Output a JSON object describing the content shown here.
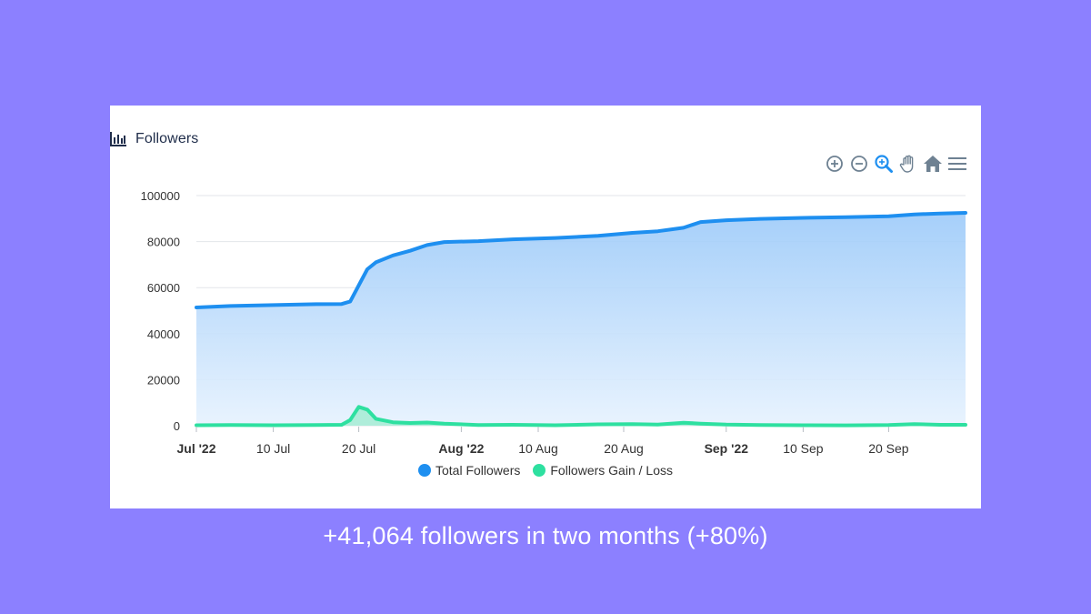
{
  "card": {
    "title": "Followers",
    "title_icon": "bar-chart-icon",
    "toolbar": [
      {
        "name": "zoom-in-icon",
        "label": "Zoom In"
      },
      {
        "name": "zoom-out-icon",
        "label": "Zoom Out"
      },
      {
        "name": "selection-zoom-icon",
        "label": "Selection Zoom"
      },
      {
        "name": "pan-icon",
        "label": "Panning"
      },
      {
        "name": "reset-zoom-icon",
        "label": "Reset Zoom"
      },
      {
        "name": "menu-icon",
        "label": "Menu"
      }
    ]
  },
  "caption": "+41,064 followers in two months (+80%)",
  "colors": {
    "background": "#8c80ff",
    "total_line": "#1e8ff0",
    "total_fill_top": "#9ccaf9",
    "total_fill_bottom": "#e6f2fe",
    "gain_line": "#2ee0a0",
    "gain_fill": "#a8ecd6",
    "toolbar_icon": "#6e8192",
    "toolbar_active": "#1e8ff0"
  },
  "chart_data": {
    "type": "area",
    "x_start": "2022-07-01",
    "x_end": "2022-09-29",
    "ylim": [
      0,
      100000
    ],
    "yticks": [
      "100000",
      "80000",
      "60000",
      "40000",
      "20000",
      "0"
    ],
    "xticks": [
      {
        "label": "Jul '22",
        "date": "2022-07-01",
        "bold": true
      },
      {
        "label": "10 Jul",
        "date": "2022-07-10",
        "bold": false
      },
      {
        "label": "20 Jul",
        "date": "2022-07-20",
        "bold": false
      },
      {
        "label": "Aug '22",
        "date": "2022-08-01",
        "bold": true
      },
      {
        "label": "10 Aug",
        "date": "2022-08-10",
        "bold": false
      },
      {
        "label": "20 Aug",
        "date": "2022-08-20",
        "bold": false
      },
      {
        "label": "Sep '22",
        "date": "2022-09-01",
        "bold": true
      },
      {
        "label": "10 Sep",
        "date": "2022-09-10",
        "bold": false
      },
      {
        "label": "20 Sep",
        "date": "2022-09-20",
        "bold": false
      }
    ],
    "grid": true,
    "legend": "bottom-center",
    "series": [
      {
        "name": "Total Followers",
        "points": [
          [
            "2022-07-01",
            51400
          ],
          [
            "2022-07-05",
            52000
          ],
          [
            "2022-07-10",
            52400
          ],
          [
            "2022-07-15",
            52800
          ],
          [
            "2022-07-18",
            52900
          ],
          [
            "2022-07-19",
            54000
          ],
          [
            "2022-07-20",
            61000
          ],
          [
            "2022-07-21",
            68000
          ],
          [
            "2022-07-22",
            71000
          ],
          [
            "2022-07-24",
            74000
          ],
          [
            "2022-07-26",
            76000
          ],
          [
            "2022-07-28",
            78500
          ],
          [
            "2022-07-30",
            79800
          ],
          [
            "2022-08-03",
            80200
          ],
          [
            "2022-08-07",
            81000
          ],
          [
            "2022-08-12",
            81600
          ],
          [
            "2022-08-17",
            82500
          ],
          [
            "2022-08-21",
            83800
          ],
          [
            "2022-08-24",
            84500
          ],
          [
            "2022-08-27",
            86000
          ],
          [
            "2022-08-29",
            88500
          ],
          [
            "2022-09-01",
            89300
          ],
          [
            "2022-09-05",
            89900
          ],
          [
            "2022-09-10",
            90300
          ],
          [
            "2022-09-15",
            90600
          ],
          [
            "2022-09-20",
            91000
          ],
          [
            "2022-09-23",
            91800
          ],
          [
            "2022-09-26",
            92200
          ],
          [
            "2022-09-29",
            92500
          ]
        ]
      },
      {
        "name": "Followers Gain / Loss",
        "points": [
          [
            "2022-07-01",
            200
          ],
          [
            "2022-07-05",
            300
          ],
          [
            "2022-07-10",
            200
          ],
          [
            "2022-07-15",
            300
          ],
          [
            "2022-07-18",
            400
          ],
          [
            "2022-07-19",
            2500
          ],
          [
            "2022-07-20",
            8200
          ],
          [
            "2022-07-21",
            7000
          ],
          [
            "2022-07-22",
            3000
          ],
          [
            "2022-07-24",
            1500
          ],
          [
            "2022-07-26",
            1200
          ],
          [
            "2022-07-28",
            1400
          ],
          [
            "2022-07-30",
            900
          ],
          [
            "2022-08-03",
            300
          ],
          [
            "2022-08-07",
            400
          ],
          [
            "2022-08-12",
            200
          ],
          [
            "2022-08-17",
            600
          ],
          [
            "2022-08-21",
            700
          ],
          [
            "2022-08-24",
            500
          ],
          [
            "2022-08-27",
            1300
          ],
          [
            "2022-08-29",
            900
          ],
          [
            "2022-09-01",
            500
          ],
          [
            "2022-09-05",
            300
          ],
          [
            "2022-09-10",
            200
          ],
          [
            "2022-09-15",
            150
          ],
          [
            "2022-09-20",
            300
          ],
          [
            "2022-09-23",
            700
          ],
          [
            "2022-09-26",
            400
          ],
          [
            "2022-09-29",
            400
          ]
        ]
      }
    ]
  }
}
